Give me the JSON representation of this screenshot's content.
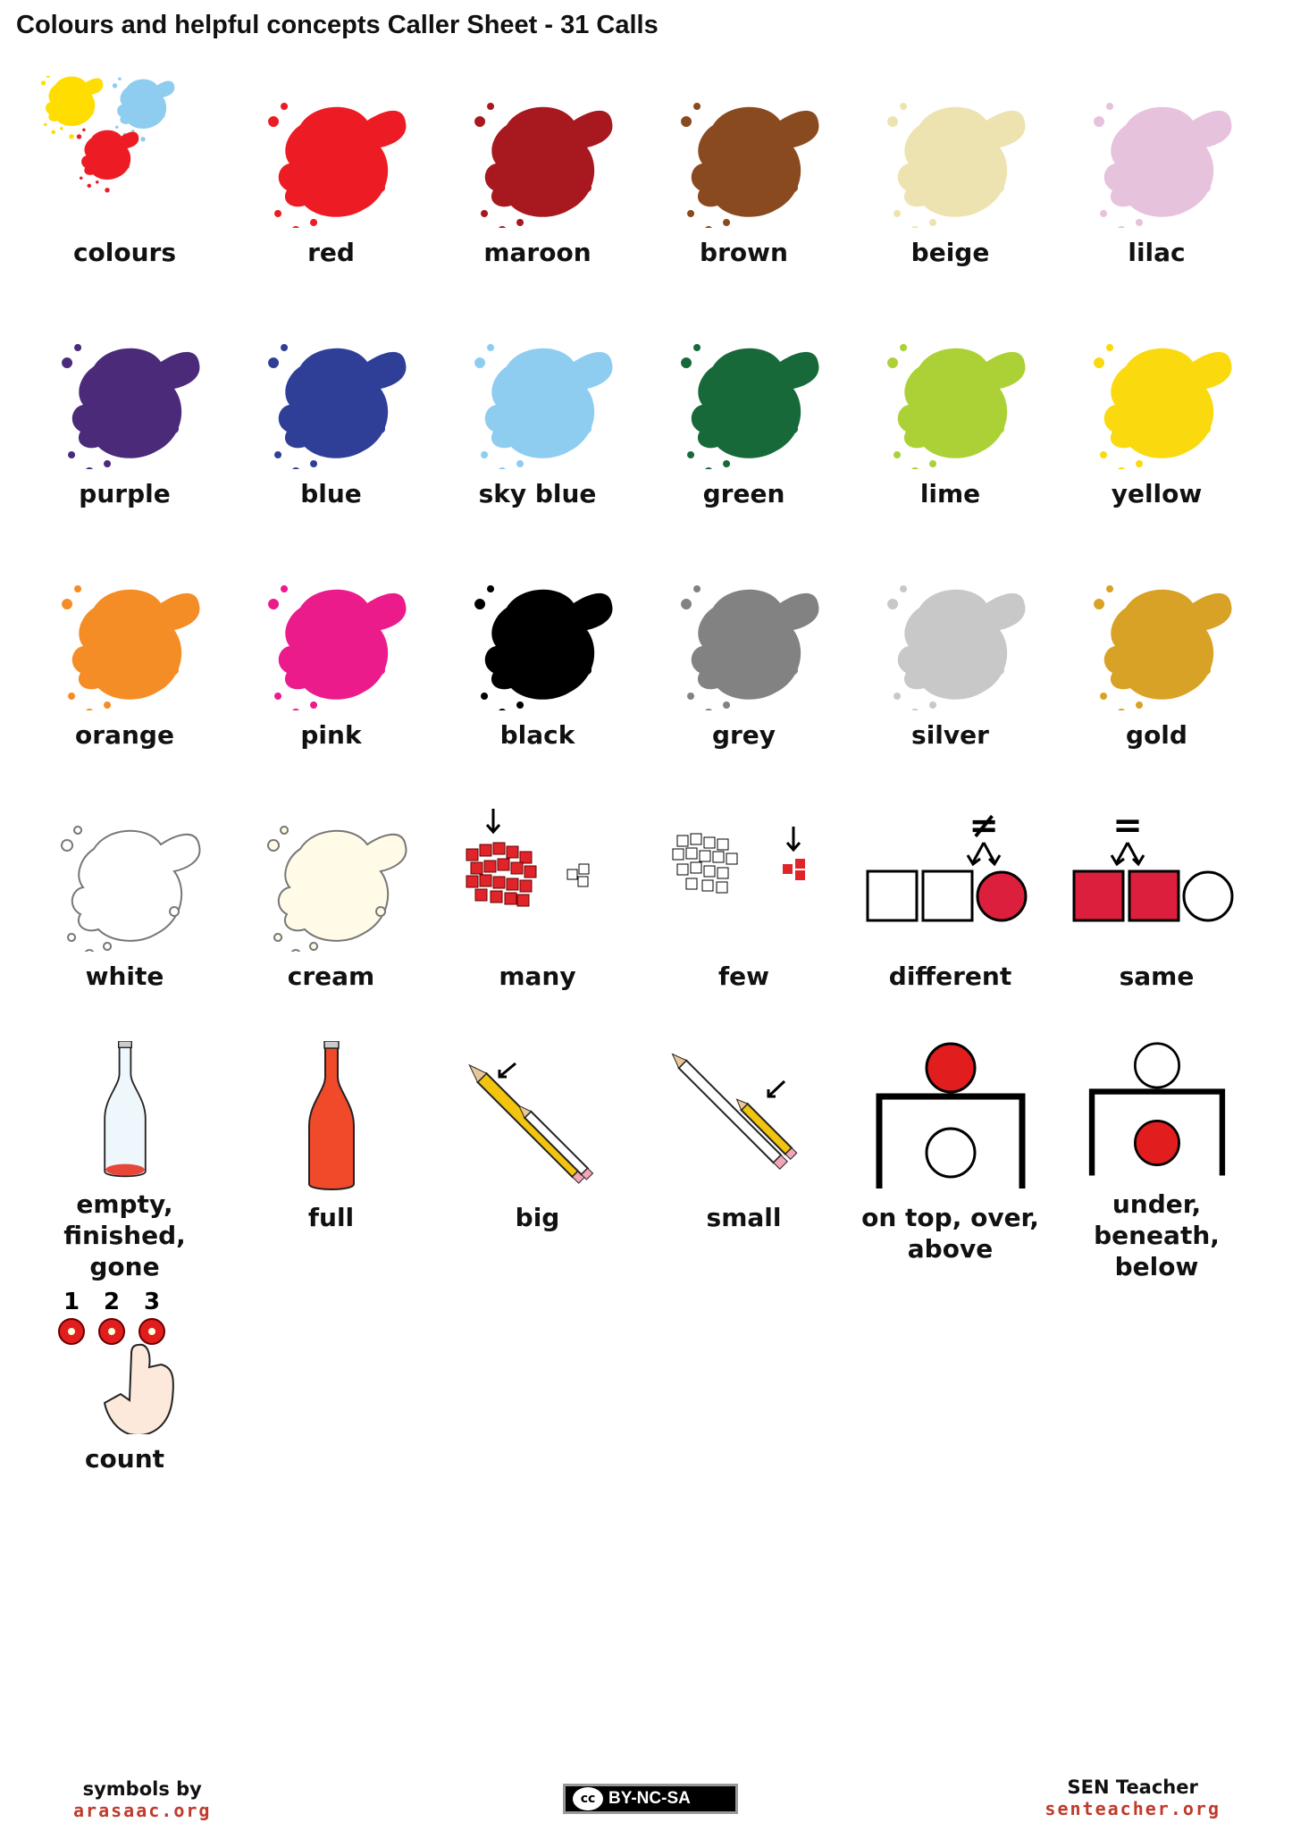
{
  "header": {
    "title": "Colours and helpful concepts Caller Sheet - 31 Calls"
  },
  "cards": [
    {
      "label": "colours",
      "icon": "colour-splats",
      "colors": [
        "#ffdd00",
        "#8ecdf0",
        "#ed1c24"
      ]
    },
    {
      "label": "red",
      "icon": "paint-splat",
      "colors": [
        "#ed1c24"
      ]
    },
    {
      "label": "maroon",
      "icon": "paint-splat",
      "colors": [
        "#a8181f"
      ]
    },
    {
      "label": "brown",
      "icon": "paint-splat",
      "colors": [
        "#8a4a20"
      ]
    },
    {
      "label": "beige",
      "icon": "paint-splat",
      "colors": [
        "#ede3b1"
      ]
    },
    {
      "label": "lilac",
      "icon": "paint-splat",
      "colors": [
        "#e7c2dc"
      ]
    },
    {
      "label": "purple",
      "icon": "paint-splat",
      "colors": [
        "#4b2a7a"
      ]
    },
    {
      "label": "blue",
      "icon": "paint-splat",
      "colors": [
        "#2f3f98"
      ]
    },
    {
      "label": "sky blue",
      "icon": "paint-splat",
      "colors": [
        "#8ecdf0"
      ]
    },
    {
      "label": "green",
      "icon": "paint-splat",
      "colors": [
        "#17693a"
      ]
    },
    {
      "label": "lime",
      "icon": "paint-splat",
      "colors": [
        "#acd136"
      ]
    },
    {
      "label": "yellow",
      "icon": "paint-splat",
      "colors": [
        "#fad90e"
      ]
    },
    {
      "label": "orange",
      "icon": "paint-splat",
      "colors": [
        "#f58d26"
      ]
    },
    {
      "label": "pink",
      "icon": "paint-splat",
      "colors": [
        "#ec1b8c"
      ]
    },
    {
      "label": "black",
      "icon": "paint-splat",
      "colors": [
        "#000000"
      ]
    },
    {
      "label": "grey",
      "icon": "paint-splat",
      "colors": [
        "#828282"
      ]
    },
    {
      "label": "silver",
      "icon": "paint-splat",
      "colors": [
        "#c8c8c8"
      ]
    },
    {
      "label": "gold",
      "icon": "paint-splat",
      "colors": [
        "#d8a227"
      ]
    },
    {
      "label": "white",
      "icon": "paint-splat-outline",
      "colors": [
        "#ffffff"
      ]
    },
    {
      "label": "cream",
      "icon": "paint-splat-outline",
      "colors": [
        "#fffbe6"
      ]
    },
    {
      "label": "many",
      "icon": "many-squares-icon",
      "colors": [
        "#e0242a"
      ]
    },
    {
      "label": "few",
      "icon": "few-squares-icon",
      "colors": [
        "#e0242a"
      ]
    },
    {
      "label": "different",
      "icon": "different-icon",
      "colors": [
        "#dc1f3c"
      ]
    },
    {
      "label": "same",
      "icon": "same-icon",
      "colors": [
        "#dc1f3c"
      ]
    },
    {
      "label": "empty,\nfinished,\ngone",
      "icon": "empty-bottle-icon",
      "colors": [
        "#e9463a"
      ]
    },
    {
      "label": "full",
      "icon": "full-bottle-icon",
      "colors": [
        "#f04a2a"
      ]
    },
    {
      "label": "big",
      "icon": "big-pencil-icon",
      "colors": [
        "#f2c30f"
      ]
    },
    {
      "label": "small",
      "icon": "small-pencil-icon",
      "colors": [
        "#f2c30f"
      ]
    },
    {
      "label": "on top, over,\nabove",
      "icon": "on-top-icon",
      "colors": [
        "#e21d1d"
      ]
    },
    {
      "label": "under,\nbeneath,\nbelow",
      "icon": "under-icon",
      "colors": [
        "#e21d1d"
      ]
    },
    {
      "label": "count",
      "icon": "count-icon",
      "colors": [
        "#e21d1d"
      ],
      "numbers": [
        "1",
        "2",
        "3"
      ]
    }
  ],
  "footer": {
    "left_line1": "symbols by",
    "left_line2": "arasaac.org",
    "license_mark": "cc",
    "license": "BY-NC-SA",
    "right_line1": "SEN Teacher",
    "right_line2": "senteacher.org"
  }
}
